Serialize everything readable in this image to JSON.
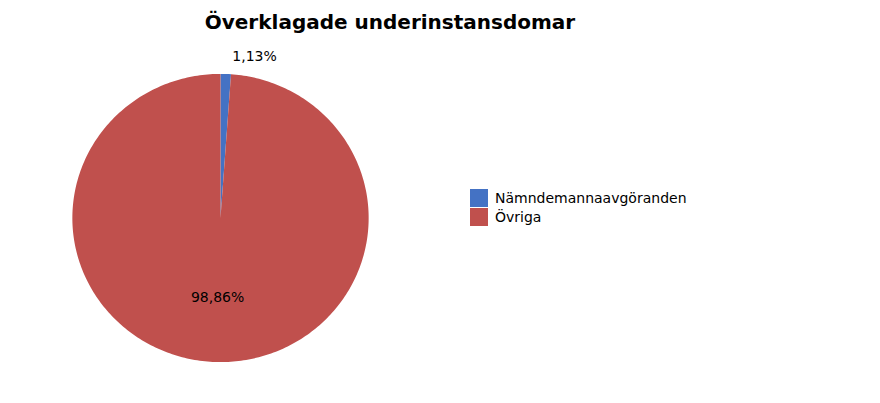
{
  "chart_data": {
    "type": "pie",
    "title": "Överklagade underinstansdomar",
    "categories": [
      "Nämndemannaavgöranden",
      "Övriga"
    ],
    "values": [
      1.13,
      98.86
    ],
    "value_labels": [
      "1,13%",
      "98,86%"
    ],
    "colors": [
      "#4472C4",
      "#C0504D"
    ],
    "data_labels": true,
    "legend": "right"
  }
}
